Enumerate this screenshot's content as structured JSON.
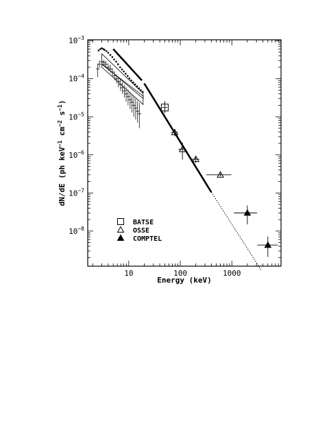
{
  "chart_data": {
    "type": "scatter",
    "title": "",
    "xlabel": "Energy (keV)",
    "ylabel_parts": {
      "prefix": "dN/dE (ph keV",
      "exp1": "−1",
      "mid": " cm",
      "exp2": "−2",
      "mid2": " s",
      "exp3": "−1",
      "suffix": ")"
    },
    "x_scale": "log",
    "y_scale": "log",
    "xlim": [
      1.6,
      9000
    ],
    "ylim": [
      1.2e-09,
      0.00105
    ],
    "x_ticks": [
      {
        "value": 10,
        "label": "10"
      },
      {
        "value": 100,
        "label": "100"
      },
      {
        "value": 1000,
        "label": "1000"
      }
    ],
    "y_ticks": [
      {
        "value": 1e-08,
        "mant": "10",
        "exp": "−8"
      },
      {
        "value": 1e-07,
        "mant": "10",
        "exp": "−7"
      },
      {
        "value": 1e-06,
        "mant": "10",
        "exp": "−6"
      },
      {
        "value": 1e-05,
        "mant": "10",
        "exp": "−5"
      },
      {
        "value": 0.0001,
        "mant": "10",
        "exp": "−4"
      },
      {
        "value": 0.001,
        "mant": "10",
        "exp": "−3"
      }
    ],
    "legend": {
      "placement": "lower-left",
      "entries": [
        {
          "marker": "open-square",
          "label": "BATSE"
        },
        {
          "marker": "open-triangle",
          "label": "OSSE"
        },
        {
          "marker": "filled-triangle",
          "label": "COMPTEL"
        }
      ]
    },
    "model_segments": [
      {
        "style": "thick",
        "points": [
          [
            5,
            0.0006
          ],
          [
            18,
            9e-05
          ]
        ]
      },
      {
        "style": "thick",
        "points": [
          [
            20,
            7.5e-05
          ],
          [
            400,
            1.05e-07
          ]
        ]
      },
      {
        "style": "dotted",
        "points": [
          [
            400,
            1.05e-07
          ],
          [
            3800,
            9e-10
          ]
        ]
      }
    ],
    "bowtie_upper": {
      "lo": [
        [
          3,
          0.00025
        ],
        [
          19,
          3e-05
        ]
      ],
      "hi": [
        [
          3,
          0.00045
        ],
        [
          19,
          4.1e-05
        ]
      ]
    },
    "bowtie_lower": {
      "lo": [
        [
          3,
          0.0002
        ],
        [
          19,
          2.1e-05
        ]
      ],
      "hi": [
        [
          3,
          0.000238
        ],
        [
          19,
          3.5e-05
        ]
      ]
    },
    "series_upper_spectrum": [
      [
        2.6,
        0.00055
      ],
      [
        2.8,
        0.0006
      ],
      [
        3.0,
        0.00063
      ],
      [
        3.2,
        0.0006
      ],
      [
        3.4,
        0.00057
      ],
      [
        3.7,
        0.00053
      ],
      [
        4.0,
        0.00048
      ],
      [
        4.4,
        0.00042
      ],
      [
        4.8,
        0.00037
      ],
      [
        5.2,
        0.00032
      ],
      [
        5.7,
        0.00028
      ],
      [
        6.2,
        0.00024
      ],
      [
        6.8,
        0.0002
      ],
      [
        7.4,
        0.000175
      ],
      [
        8.0,
        0.000155
      ],
      [
        8.7,
        0.000135
      ],
      [
        9.5,
        0.000118
      ],
      [
        10.3,
        0.000102
      ],
      [
        11.2,
        9e-05
      ],
      [
        12.2,
        8e-05
      ],
      [
        13.3,
        7.1e-05
      ],
      [
        14.5,
        6.3e-05
      ],
      [
        15.8,
        5.6e-05
      ],
      [
        17.2,
        5e-05
      ],
      [
        18.7,
        4.5e-05
      ]
    ],
    "series_lower_spectrum": [
      {
        "x": 2.5,
        "y": 0.00018,
        "lo": 0.00011,
        "hi": 0.00025
      },
      {
        "x": 2.7,
        "y": 0.00024,
        "lo": 0.00019,
        "hi": 0.0003
      },
      {
        "x": 3.0,
        "y": 0.00028,
        "lo": 0.00023,
        "hi": 0.00032
      },
      {
        "x": 3.3,
        "y": 0.00027,
        "lo": 0.00022,
        "hi": 0.00031
      },
      {
        "x": 3.6,
        "y": 0.00024,
        "lo": 0.00019,
        "hi": 0.00029
      },
      {
        "x": 4.0,
        "y": 0.0002,
        "lo": 0.00016,
        "hi": 0.00025
      },
      {
        "x": 4.4,
        "y": 0.00018,
        "lo": 0.00014,
        "hi": 0.00023
      },
      {
        "x": 4.8,
        "y": 0.00015,
        "lo": 0.00011,
        "hi": 0.00019
      },
      {
        "x": 5.3,
        "y": 0.00012,
        "lo": 9e-05,
        "hi": 0.000155
      },
      {
        "x": 5.8,
        "y": 0.0001,
        "lo": 7.5e-05,
        "hi": 0.00013
      },
      {
        "x": 6.3,
        "y": 8.5e-05,
        "lo": 6e-05,
        "hi": 0.00011
      },
      {
        "x": 6.9,
        "y": 7e-05,
        "lo": 4.8e-05,
        "hi": 9.5e-05
      },
      {
        "x": 7.5,
        "y": 5.8e-05,
        "lo": 4e-05,
        "hi": 8e-05
      },
      {
        "x": 8.2,
        "y": 4.8e-05,
        "lo": 3.2e-05,
        "hi": 6.8e-05
      },
      {
        "x": 8.9,
        "y": 4e-05,
        "lo": 2.5e-05,
        "hi": 6e-05
      },
      {
        "x": 9.7,
        "y": 3.4e-05,
        "lo": 2e-05,
        "hi": 5.2e-05
      },
      {
        "x": 10.6,
        "y": 2.8e-05,
        "lo": 1.6e-05,
        "hi": 4.5e-05
      },
      {
        "x": 11.5,
        "y": 2.4e-05,
        "lo": 1.3e-05,
        "hi": 4e-05
      },
      {
        "x": 12.5,
        "y": 2e-05,
        "lo": 1e-05,
        "hi": 3.5e-05
      },
      {
        "x": 13.6,
        "y": 1.7e-05,
        "lo": 8.5e-06,
        "hi": 3e-05
      },
      {
        "x": 14.8,
        "y": 1.4e-05,
        "lo": 7e-06,
        "hi": 2.6e-05
      },
      {
        "x": 16.1,
        "y": 1.2e-05,
        "lo": 5e-06,
        "hi": 2.3e-05
      }
    ],
    "series_batse": [
      {
        "x": 50,
        "y": 1.75e-05,
        "xlo": 44,
        "xhi": 56,
        "ylo": 1.25e-05,
        "yhi": 2.6e-05
      }
    ],
    "series_osse": [
      {
        "x": 78,
        "y": 3.9e-06,
        "xlo": 66,
        "xhi": 90,
        "ylo": 3.1e-06,
        "yhi": 4.7e-06
      },
      {
        "x": 110,
        "y": 1.4e-06,
        "xlo": 92,
        "xhi": 130,
        "ylo": 7.5e-07,
        "yhi": 2.1e-06
      },
      {
        "x": 200,
        "y": 7.7e-07,
        "xlo": 165,
        "xhi": 235,
        "ylo": 6.2e-07,
        "yhi": 9.2e-07
      },
      {
        "x": 600,
        "y": 3e-07,
        "xlo": 320,
        "xhi": 980,
        "ylo": 2.7e-07,
        "yhi": 3.3e-07
      }
    ],
    "series_comptel": [
      {
        "x": 2000,
        "y": 3e-08,
        "xlo": 1100,
        "xhi": 3100,
        "ylo": 1.5e-08,
        "yhi": 4.7e-08
      },
      {
        "x": 5000,
        "y": 4.3e-09,
        "xlo": 3100,
        "xhi": 7800,
        "ylo": 2.1e-09,
        "yhi": 7.2e-09
      }
    ]
  }
}
